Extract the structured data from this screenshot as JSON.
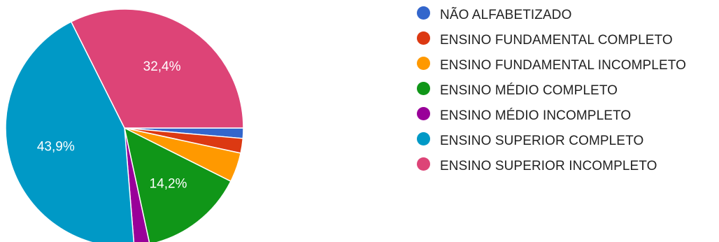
{
  "chart_data": {
    "type": "pie",
    "title": "",
    "slices": [
      {
        "label": "NÃO ALFABETIZADO",
        "value": 1.4,
        "color": "#3366cc",
        "data_label": ""
      },
      {
        "label": "ENSINO FUNDAMENTAL COMPLETO",
        "value": 2.0,
        "color": "#dc3912",
        "data_label": ""
      },
      {
        "label": "ENSINO FUNDAMENTAL INCOMPLETO",
        "value": 4.0,
        "color": "#ff9900",
        "data_label": ""
      },
      {
        "label": "ENSINO MÉDIO COMPLETO",
        "value": 14.2,
        "color": "#109618",
        "data_label": "14,2%"
      },
      {
        "label": "ENSINO MÉDIO INCOMPLETO",
        "value": 2.1,
        "color": "#990099",
        "data_label": ""
      },
      {
        "label": "ENSINO SUPERIOR COMPLETO",
        "value": 43.9,
        "color": "#0099c6",
        "data_label": "43,9%"
      },
      {
        "label": "ENSINO SUPERIOR INCOMPLETO",
        "value": 32.4,
        "color": "#dd4477",
        "data_label": "32,4%"
      }
    ],
    "legend_position": "right"
  }
}
